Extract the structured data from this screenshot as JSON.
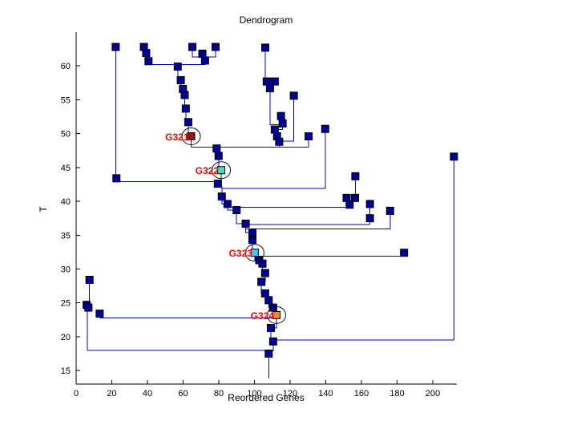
{
  "chart_data": {
    "type": "line",
    "chart_kind": "dendrogram",
    "title": "Dendrogram",
    "xlabel": "Reordered Genes",
    "ylabel": "T",
    "xlim": [
      0,
      213.5
    ],
    "ylim": [
      13,
      65
    ],
    "xticks": [
      0,
      20,
      40,
      60,
      80,
      100,
      120,
      140,
      160,
      180,
      200
    ],
    "yticks": [
      15,
      20,
      25,
      30,
      35,
      40,
      45,
      50,
      55,
      60
    ],
    "grid": false,
    "legend": null,
    "colors": {
      "line": "#0000CC",
      "node_fill": "#000099",
      "node_stroke": "#000000",
      "label_text": "#FF0000",
      "circle_stroke": "#111111",
      "axis": "#000000"
    },
    "labeled_nodes": [
      {
        "label": "G321",
        "x": 64.5,
        "t": 49.6,
        "fill": "#991111"
      },
      {
        "label": "G322",
        "x": 81.4,
        "t": 44.6,
        "fill": "#3FE0C0"
      },
      {
        "label": "G323",
        "x": 100.2,
        "t": 32.4,
        "fill": "#3FC8EE"
      },
      {
        "label": "G324",
        "x": 112.4,
        "t": 23.2,
        "fill": "#F2871A"
      }
    ],
    "nodes": [
      [
        22.2,
        62.8
      ],
      [
        22.6,
        43.4
      ],
      [
        38,
        62.8
      ],
      [
        39.3,
        61.9
      ],
      [
        40.6,
        60.7
      ],
      [
        57,
        59.9
      ],
      [
        72.3,
        60.8
      ],
      [
        70.8,
        61.8
      ],
      [
        65.2,
        62.8
      ],
      [
        78.2,
        62.8
      ],
      [
        58.7,
        57.9
      ],
      [
        59.9,
        56.6
      ],
      [
        60.9,
        55.7
      ],
      [
        61.5,
        53.7
      ],
      [
        62.9,
        51.7
      ],
      [
        106.1,
        62.7
      ],
      [
        106.9,
        57.7
      ],
      [
        111.4,
        57.7
      ],
      [
        108.7,
        56.7
      ],
      [
        122.1,
        55.6
      ],
      [
        114.9,
        52.6
      ],
      [
        115.8,
        51.5
      ],
      [
        111.4,
        50.6
      ],
      [
        112.7,
        49.6
      ],
      [
        113.9,
        48.8
      ],
      [
        130.4,
        49.6
      ],
      [
        139.7,
        50.7
      ],
      [
        78.8,
        47.8
      ],
      [
        79.9,
        46.7
      ],
      [
        79.5,
        42.6
      ],
      [
        81.7,
        40.7
      ],
      [
        84.9,
        39.6
      ],
      [
        90,
        38.7
      ],
      [
        95.1,
        36.7
      ],
      [
        98.9,
        35.4
      ],
      [
        98.9,
        34.3
      ],
      [
        102.7,
        31.3
      ],
      [
        104.5,
        30.8
      ],
      [
        106,
        29.4
      ],
      [
        103.9,
        28.1
      ],
      [
        106,
        26.4
      ],
      [
        108,
        25.4
      ],
      [
        110.5,
        24.3
      ],
      [
        109.2,
        21.3
      ],
      [
        110.5,
        19.3
      ],
      [
        108,
        17.5
      ],
      [
        156.6,
        43.7
      ],
      [
        151.7,
        40.5
      ],
      [
        156.4,
        40.5
      ],
      [
        153.4,
        39.5
      ],
      [
        164.8,
        39.6
      ],
      [
        164.8,
        37.5
      ],
      [
        176.1,
        38.6
      ],
      [
        183.9,
        32.4
      ],
      [
        211.9,
        46.6
      ],
      [
        7.5,
        28.4
      ],
      [
        5.9,
        24.7
      ],
      [
        6.9,
        24.3
      ],
      [
        13.2,
        23.4
      ]
    ],
    "segments": [
      [
        [
          22.2,
          62.8
        ],
        [
          22.2,
          42.9
        ],
        [
          81.4,
          42.9
        ]
      ],
      [
        [
          81.4,
          44.6
        ],
        [
          81.4,
          42.9
        ]
      ],
      [
        [
          38,
          62.8
        ],
        [
          38,
          61.9
        ],
        [
          39.3,
          61.9
        ],
        [
          39.3,
          60.7
        ],
        [
          40.6,
          60.7
        ],
        [
          40.6,
          60.2
        ],
        [
          72.3,
          60.2
        ],
        [
          72.3,
          60.8
        ]
      ],
      [
        [
          65.2,
          62.8
        ],
        [
          65.2,
          61.3
        ],
        [
          78.2,
          61.3
        ],
        [
          78.2,
          62.8
        ]
      ],
      [
        [
          70.8,
          61.3
        ],
        [
          70.8,
          60.8
        ],
        [
          72.3,
          60.8
        ]
      ],
      [
        [
          57,
          60.2
        ],
        [
          57,
          57.9
        ],
        [
          58.7,
          57.9
        ],
        [
          58.7,
          56.6
        ],
        [
          59.9,
          56.6
        ],
        [
          59.9,
          55.7
        ],
        [
          60.9,
          55.7
        ],
        [
          60.9,
          53.7
        ],
        [
          61.5,
          53.7
        ],
        [
          61.5,
          51.7
        ],
        [
          62.9,
          51.7
        ],
        [
          62.9,
          49.6
        ],
        [
          64.5,
          49.6
        ],
        [
          64.5,
          48
        ]
      ],
      [
        [
          64.5,
          48
        ],
        [
          130.4,
          48
        ]
      ],
      [
        [
          130.4,
          49.6
        ],
        [
          130.4,
          48
        ]
      ],
      [
        [
          113.9,
          48.8
        ],
        [
          113.9,
          48
        ]
      ],
      [
        [
          106.1,
          62.7
        ],
        [
          106.1,
          57.2
        ],
        [
          111.4,
          57.2
        ],
        [
          111.4,
          57.7
        ]
      ],
      [
        [
          106.9,
          57.7
        ],
        [
          106.9,
          57.2
        ]
      ],
      [
        [
          108.7,
          57.2
        ],
        [
          108.7,
          51.3
        ],
        [
          114.9,
          51.3
        ],
        [
          114.9,
          52.6
        ]
      ],
      [
        [
          114.9,
          52.6
        ],
        [
          114.9,
          51.5
        ],
        [
          115.8,
          51.5
        ],
        [
          115.8,
          50.6
        ],
        [
          111.4,
          50.6
        ],
        [
          111.4,
          49.6
        ],
        [
          112.7,
          49.6
        ],
        [
          112.7,
          48.8
        ],
        [
          113.9,
          48.8
        ]
      ],
      [
        [
          122.1,
          55.6
        ],
        [
          122.1,
          48.9
        ],
        [
          112.7,
          48.9
        ]
      ],
      [
        [
          139.7,
          50.7
        ],
        [
          139.7,
          41.9
        ]
      ],
      [
        [
          78.8,
          48
        ],
        [
          78.8,
          46.7
        ],
        [
          79.9,
          46.7
        ],
        [
          79.9,
          44.6
        ],
        [
          81.4,
          44.6
        ]
      ],
      [
        [
          79.5,
          42.9
        ],
        [
          79.5,
          42.1
        ],
        [
          81.7,
          42.1
        ],
        [
          81.7,
          41.9
        ]
      ],
      [
        [
          81.7,
          41.9
        ],
        [
          139.7,
          41.9
        ]
      ],
      [
        [
          81.7,
          41.9
        ],
        [
          81.7,
          39.6
        ],
        [
          84.9,
          39.6
        ],
        [
          84.9,
          39.1
        ]
      ],
      [
        [
          84.9,
          39.1
        ],
        [
          153.4,
          39.1
        ]
      ],
      [
        [
          84.9,
          39.6
        ],
        [
          84.9,
          38.7
        ],
        [
          90,
          38.7
        ],
        [
          90,
          36.7
        ],
        [
          95.1,
          36.7
        ],
        [
          95.1,
          35.4
        ],
        [
          98.9,
          35.4
        ],
        [
          98.9,
          32.4
        ],
        [
          100.2,
          32.4
        ]
      ],
      [
        [
          95.1,
          36.6
        ],
        [
          164.8,
          36.6
        ]
      ],
      [
        [
          95.1,
          35.9
        ],
        [
          176.1,
          35.9
        ]
      ],
      [
        [
          100.2,
          32.4
        ],
        [
          100.2,
          31.9
        ],
        [
          183.9,
          31.9
        ]
      ],
      [
        [
          100.2,
          31.9
        ],
        [
          100.2,
          31.3
        ],
        [
          102.7,
          31.3
        ],
        [
          102.7,
          30.8
        ],
        [
          104.5,
          30.8
        ],
        [
          104.5,
          29.4
        ],
        [
          106,
          29.4
        ],
        [
          106,
          28.1
        ],
        [
          103.9,
          28.1
        ],
        [
          103.9,
          26.4
        ],
        [
          106,
          26.4
        ],
        [
          106,
          25.4
        ],
        [
          108,
          25.4
        ],
        [
          108,
          24.3
        ],
        [
          110.5,
          24.3
        ],
        [
          110.5,
          23.2
        ],
        [
          112.4,
          23.2
        ],
        [
          112.4,
          22.8
        ]
      ],
      [
        [
          13.2,
          22.8
        ],
        [
          112.4,
          22.8
        ]
      ],
      [
        [
          112.4,
          22.8
        ],
        [
          112.4,
          21.3
        ],
        [
          109.2,
          21.3
        ],
        [
          109.2,
          19.3
        ],
        [
          110.5,
          19.3
        ]
      ],
      [
        [
          110.5,
          19.5
        ],
        [
          211.9,
          19.5
        ]
      ],
      [
        [
          110.5,
          19.3
        ],
        [
          110.5,
          17.9
        ],
        [
          108,
          17.9
        ],
        [
          108,
          13.8
        ]
      ],
      [
        [
          6.4,
          18
        ],
        [
          108,
          18
        ]
      ],
      [
        [
          7.5,
          28.4
        ],
        [
          7.5,
          24.5
        ],
        [
          6.4,
          24.5
        ],
        [
          6.4,
          18
        ]
      ],
      [
        [
          156.6,
          43.7
        ],
        [
          156.6,
          40
        ],
        [
          151.7,
          40
        ],
        [
          151.7,
          40.5
        ]
      ],
      [
        [
          156.6,
          40.5
        ],
        [
          156.6,
          40
        ]
      ],
      [
        [
          153.4,
          40
        ],
        [
          153.4,
          39.1
        ]
      ],
      [
        [
          164.8,
          39.6
        ],
        [
          164.8,
          36.6
        ]
      ],
      [
        [
          176.1,
          38.6
        ],
        [
          176.1,
          35.9
        ]
      ],
      [
        [
          211.9,
          46.6
        ],
        [
          211.9,
          19.5
        ]
      ]
    ]
  }
}
